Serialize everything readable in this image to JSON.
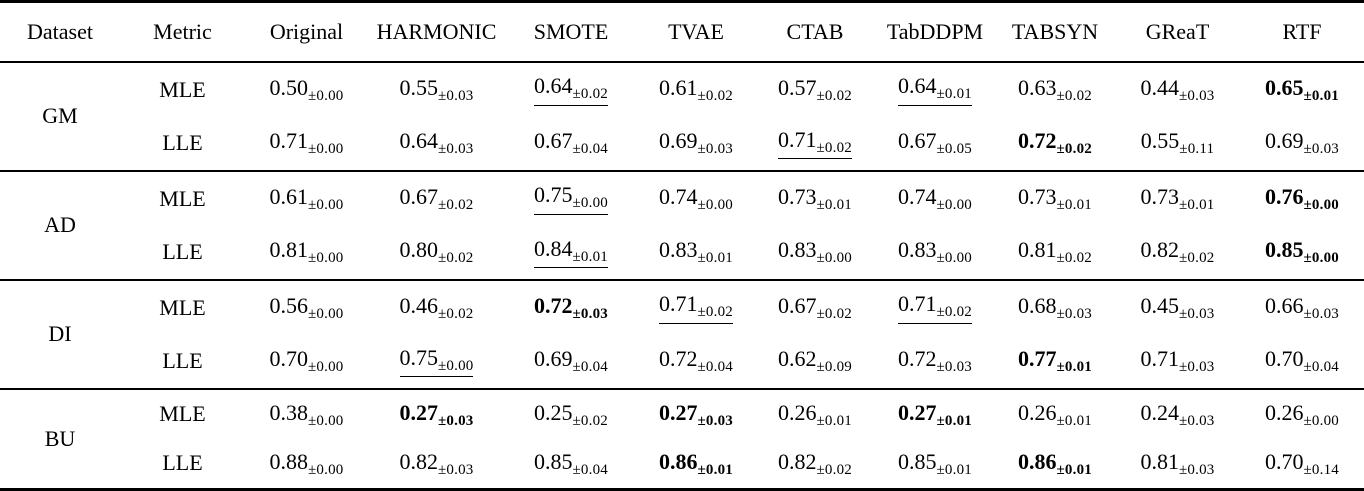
{
  "table": {
    "columns": [
      "Dataset",
      "Metric",
      "Original",
      "HARMONIC",
      "SMOTE",
      "TVAE",
      "CTAB",
      "TabDDPM",
      "TABSYN",
      "GReaT",
      "RTF"
    ],
    "groups": [
      {
        "dataset": "GM",
        "rows": [
          {
            "metric": "MLE",
            "cells": [
              {
                "value": "0.50",
                "sub": "±0.00"
              },
              {
                "value": "0.55",
                "sub": "±0.03"
              },
              {
                "value": "0.64",
                "sub": "±0.02",
                "underline": true
              },
              {
                "value": "0.61",
                "sub": "±0.02"
              },
              {
                "value": "0.57",
                "sub": "±0.02"
              },
              {
                "value": "0.64",
                "sub": "±0.01",
                "underline": true
              },
              {
                "value": "0.63",
                "sub": "±0.02"
              },
              {
                "value": "0.44",
                "sub": "±0.03"
              },
              {
                "value": "0.65",
                "sub": "±0.01",
                "bold": true
              }
            ]
          },
          {
            "metric": "LLE",
            "cells": [
              {
                "value": "0.71",
                "sub": "±0.00"
              },
              {
                "value": "0.64",
                "sub": "±0.03"
              },
              {
                "value": "0.67",
                "sub": "±0.04"
              },
              {
                "value": "0.69",
                "sub": "±0.03"
              },
              {
                "value": "0.71",
                "sub": "±0.02",
                "underline": true
              },
              {
                "value": "0.67",
                "sub": "±0.05"
              },
              {
                "value": "0.72",
                "sub": "±0.02",
                "bold": true
              },
              {
                "value": "0.55",
                "sub": "±0.11"
              },
              {
                "value": "0.69",
                "sub": "±0.03"
              }
            ]
          }
        ]
      },
      {
        "dataset": "AD",
        "rows": [
          {
            "metric": "MLE",
            "cells": [
              {
                "value": "0.61",
                "sub": "±0.00"
              },
              {
                "value": "0.67",
                "sub": "±0.02"
              },
              {
                "value": "0.75",
                "sub": "±0.00",
                "underline": true
              },
              {
                "value": "0.74",
                "sub": "±0.00"
              },
              {
                "value": "0.73",
                "sub": "±0.01"
              },
              {
                "value": "0.74",
                "sub": "±0.00"
              },
              {
                "value": "0.73",
                "sub": "±0.01"
              },
              {
                "value": "0.73",
                "sub": "±0.01"
              },
              {
                "value": "0.76",
                "sub": "±0.00",
                "bold": true
              }
            ]
          },
          {
            "metric": "LLE",
            "cells": [
              {
                "value": "0.81",
                "sub": "±0.00"
              },
              {
                "value": "0.80",
                "sub": "±0.02"
              },
              {
                "value": "0.84",
                "sub": "±0.01",
                "underline": true
              },
              {
                "value": "0.83",
                "sub": "±0.01"
              },
              {
                "value": "0.83",
                "sub": "±0.00"
              },
              {
                "value": "0.83",
                "sub": "±0.00"
              },
              {
                "value": "0.81",
                "sub": "±0.02"
              },
              {
                "value": "0.82",
                "sub": "±0.02"
              },
              {
                "value": "0.85",
                "sub": "±0.00",
                "bold": true
              }
            ]
          }
        ]
      },
      {
        "dataset": "DI",
        "rows": [
          {
            "metric": "MLE",
            "cells": [
              {
                "value": "0.56",
                "sub": "±0.00"
              },
              {
                "value": "0.46",
                "sub": "±0.02"
              },
              {
                "value": "0.72",
                "sub": "±0.03",
                "bold": true
              },
              {
                "value": "0.71",
                "sub": "±0.02",
                "underline": true
              },
              {
                "value": "0.67",
                "sub": "±0.02"
              },
              {
                "value": "0.71",
                "sub": "±0.02",
                "underline": true
              },
              {
                "value": "0.68",
                "sub": "±0.03"
              },
              {
                "value": "0.45",
                "sub": "±0.03"
              },
              {
                "value": "0.66",
                "sub": "±0.03"
              }
            ]
          },
          {
            "metric": "LLE",
            "cells": [
              {
                "value": "0.70",
                "sub": "±0.00"
              },
              {
                "value": "0.75",
                "sub": "±0.00",
                "underline": true
              },
              {
                "value": "0.69",
                "sub": "±0.04"
              },
              {
                "value": "0.72",
                "sub": "±0.04"
              },
              {
                "value": "0.62",
                "sub": "±0.09"
              },
              {
                "value": "0.72",
                "sub": "±0.03"
              },
              {
                "value": "0.77",
                "sub": "±0.01",
                "bold": true
              },
              {
                "value": "0.71",
                "sub": "±0.03"
              },
              {
                "value": "0.70",
                "sub": "±0.04"
              }
            ]
          }
        ]
      },
      {
        "dataset": "BU",
        "rows": [
          {
            "metric": "MLE",
            "cells": [
              {
                "value": "0.38",
                "sub": "±0.00"
              },
              {
                "value": "0.27",
                "sub": "±0.03",
                "bold": true
              },
              {
                "value": "0.25",
                "sub": "±0.02"
              },
              {
                "value": "0.27",
                "sub": "±0.03",
                "bold": true
              },
              {
                "value": "0.26",
                "sub": "±0.01"
              },
              {
                "value": "0.27",
                "sub": "±0.01",
                "bold": true
              },
              {
                "value": "0.26",
                "sub": "±0.01"
              },
              {
                "value": "0.24",
                "sub": "±0.03"
              },
              {
                "value": "0.26",
                "sub": "±0.00"
              }
            ]
          },
          {
            "metric": "LLE",
            "cells": [
              {
                "value": "0.88",
                "sub": "±0.00"
              },
              {
                "value": "0.82",
                "sub": "±0.03"
              },
              {
                "value": "0.85",
                "sub": "±0.04"
              },
              {
                "value": "0.86",
                "sub": "±0.01",
                "bold": true
              },
              {
                "value": "0.82",
                "sub": "±0.02"
              },
              {
                "value": "0.85",
                "sub": "±0.01"
              },
              {
                "value": "0.86",
                "sub": "±0.01",
                "bold": true
              },
              {
                "value": "0.81",
                "sub": "±0.03"
              },
              {
                "value": "0.70",
                "sub": "±0.14"
              }
            ]
          }
        ]
      }
    ]
  }
}
